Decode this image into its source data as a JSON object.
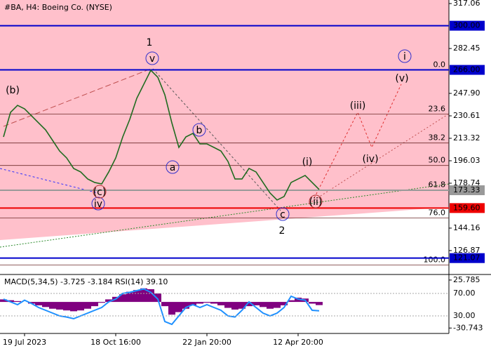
{
  "chart_data": {
    "type": "line",
    "title": "#BA, H4:  Boeing Co. (NYSE)",
    "categories": [
      null,
      null,
      null,
      "19 Jul 2023",
      null,
      null,
      null,
      null,
      null,
      null,
      null,
      null,
      null,
      null,
      null,
      null,
      "18 Oct 16:00",
      null,
      null,
      null,
      null,
      null,
      null,
      null,
      null,
      null,
      null,
      null,
      null,
      "22 Jan 20:00",
      null,
      null,
      null,
      null,
      null,
      null,
      null,
      null,
      null,
      null,
      null,
      null,
      "12 Apr 20:00",
      null,
      null,
      null
    ],
    "series": [
      {
        "color": "#1f6b1f",
        "values": [
          214.4,
          233.3,
          238.7,
          236.0,
          230.6,
          225.2,
          219.8,
          211.7,
          203.5,
          198.2,
          190.1,
          187.4,
          182.0,
          179.3,
          178.2,
          187.4,
          198.2,
          214.4,
          227.9,
          244.1,
          254.9,
          265.7,
          260.3,
          246.8,
          225.2,
          206.3,
          214.4,
          217.1,
          209.0,
          209.0,
          206.3,
          203.5,
          195.5,
          182.0,
          182.0,
          190.1,
          187.4,
          179.3,
          171.2,
          165.8,
          168.5,
          179.3,
          182.0,
          184.7,
          179.3,
          173.9
        ]
      }
    ],
    "ylim": [
      109.0,
      319.8
    ],
    "yticks": [
      {
        "value": 317.06,
        "label": "317.06"
      },
      282.45,
      {
        "value": 247.9,
        "label": "247.90"
      },
      230.61,
      213.32,
      196.03,
      178.74,
      144.16,
      126.87
    ],
    "levels": [
      {
        "value": 300,
        "label": "300.00",
        "color": "#0000cc"
      },
      {
        "value": 266,
        "label": "266.00",
        "color": "#0000cc"
      },
      {
        "value": 173.33,
        "label": "173.33",
        "color": "#999999"
      },
      {
        "value": 159.6,
        "label": "159.60",
        "color": "#ee0000"
      },
      {
        "value": 121.07,
        "label": "121.07",
        "color": "#0000cc"
      }
    ],
    "fib_levels": [
      {
        "value": 266,
        "label": "0.0"
      },
      {
        "value": 231.9,
        "label": "23.6"
      },
      {
        "value": 209.7,
        "label": "38.2"
      },
      {
        "value": 192.4,
        "label": "50.0"
      },
      {
        "value": 173.5,
        "label": "61.8"
      },
      {
        "value": 151.9,
        "label": "76.0"
      },
      {
        "value": 115.7,
        "label": "100.0"
      }
    ],
    "annotations": [
      "(b)",
      "1",
      "v",
      "iv",
      "(c)",
      "a",
      "b",
      "c",
      "2",
      "(i)",
      "(ii)",
      "(iii)",
      "(iv)",
      "(v)",
      "i"
    ],
    "indicator": {
      "label": "MACD(5,34,5) -3.725 -3.184 RSI(14) 39.10",
      "macd": {
        "color": "#800080",
        "values": [
          3,
          2,
          1,
          0,
          -2,
          -4,
          -6,
          -8,
          -9,
          -10,
          -11,
          -10,
          -8,
          -5,
          -1,
          3,
          6,
          9,
          12,
          14,
          16,
          15,
          10,
          -5,
          -15,
          -12,
          -8,
          -4,
          -2,
          -1,
          -2,
          -4,
          -7,
          -9,
          -8,
          -5,
          -4,
          -6,
          -8,
          -7,
          -4,
          2,
          5,
          4,
          -2,
          -3.725
        ],
        "ylim": [
          -33,
          31.5
        ],
        "yticks": [
          25.785,
          -30.743
        ]
      },
      "rsi": {
        "color": "#1e90ff",
        "values": [
          60,
          55,
          50,
          58,
          52,
          45,
          40,
          35,
          30,
          28,
          25,
          30,
          35,
          40,
          45,
          55,
          60,
          70,
          72,
          75,
          78,
          72,
          60,
          20,
          15,
          30,
          45,
          50,
          45,
          50,
          45,
          40,
          30,
          28,
          40,
          55,
          45,
          35,
          30,
          35,
          45,
          65,
          60,
          58,
          40,
          39.1
        ],
        "ylim": [
          5,
          102.5
        ],
        "yticks": [
          {
            "value": 70,
            "label": "70.00"
          },
          {
            "value": 30,
            "label": "30.00"
          }
        ]
      }
    }
  }
}
